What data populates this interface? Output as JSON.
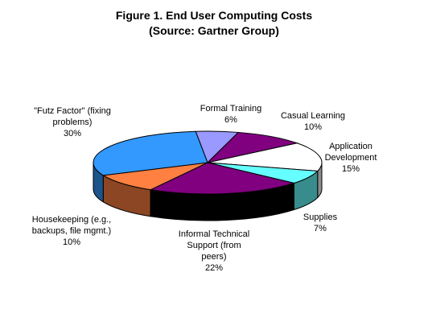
{
  "chart_data": {
    "type": "pie",
    "title": "Figure 1. End User Computing Costs",
    "subtitle": "(Source: Gartner Group)",
    "three_d": true,
    "slices": [
      {
        "label": "Formal Training",
        "value": 6,
        "value_label": "6%",
        "color": "#9999ff"
      },
      {
        "label": "Casual Learning",
        "value": 10,
        "value_label": "10%",
        "color": "#800080"
      },
      {
        "label": "Application Development",
        "value": 15,
        "value_label": "15%",
        "color": "#ffffff"
      },
      {
        "label": "Supplies",
        "value": 7,
        "value_label": "7%",
        "color": "#66ffff"
      },
      {
        "label": "Informal Technical Support (from peers)",
        "value": 22,
        "value_label": "22%",
        "color": "#800080"
      },
      {
        "label": "Housekeeping (e.g., backups, file mgmt.)",
        "value": 10,
        "value_label": "10%",
        "color": "#ff8040"
      },
      {
        "label": "\"Futz Factor\" (fixing problems)",
        "value": 30,
        "value_label": "30%",
        "color": "#3399ff"
      }
    ],
    "label_lines": [
      [
        "Formal Training",
        "6%"
      ],
      [
        "Casual Learning",
        "10%"
      ],
      [
        "Application",
        "Development",
        "15%"
      ],
      [
        "Supplies",
        "7%"
      ],
      [
        "Informal Technical",
        "Support (from",
        "peers)",
        "22%"
      ],
      [
        "Housekeeping (e.g.,",
        "backups, file mgmt.)",
        "10%"
      ],
      [
        "\"Futz Factor\" (fixing",
        "problems)",
        "30%"
      ]
    ]
  }
}
